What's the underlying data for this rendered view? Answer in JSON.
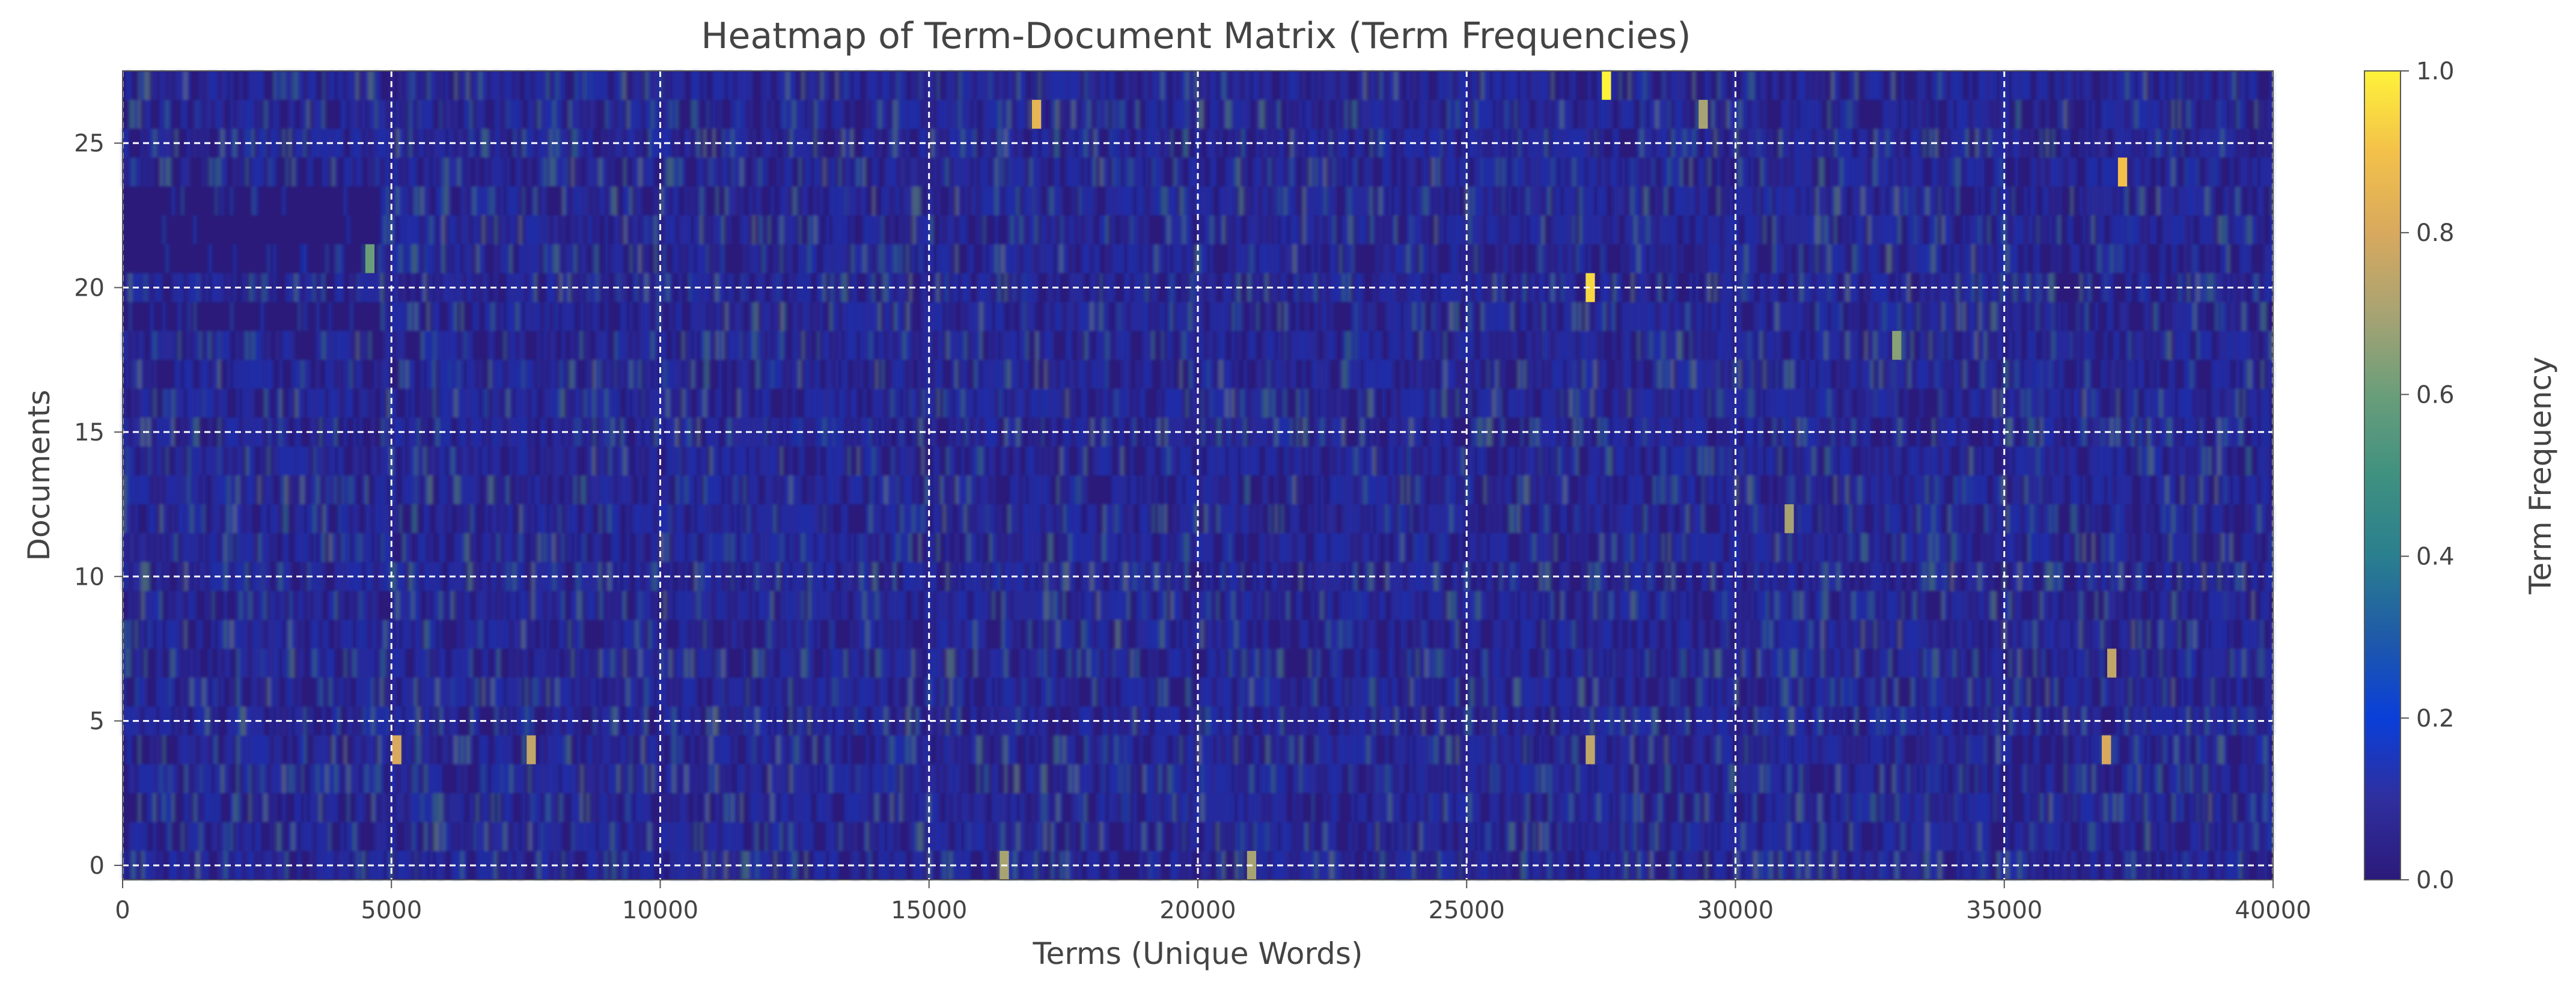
{
  "chart_data": {
    "type": "heatmap",
    "title": "Heatmap of Term-Document Matrix (Term Frequencies)",
    "xlabel": "Terms (Unique Words)",
    "ylabel": "Documents",
    "xlim": [
      0,
      40000
    ],
    "ylim": [
      -0.5,
      27.5
    ],
    "n_documents": 28,
    "n_terms": 40000,
    "x_ticks": [
      0,
      5000,
      10000,
      15000,
      20000,
      25000,
      30000,
      35000,
      40000
    ],
    "x_tick_labels": [
      "0",
      "5000",
      "10000",
      "15000",
      "20000",
      "25000",
      "30000",
      "35000",
      "40000"
    ],
    "y_ticks": [
      0,
      5,
      10,
      15,
      20,
      25
    ],
    "y_tick_labels": [
      "0",
      "5",
      "10",
      "15",
      "20",
      "25"
    ],
    "grid": true,
    "grid_style": "dashed",
    "grid_color": "#ffffff",
    "colormap": {
      "name": "plasma-like (navy → blue → teal → green → gold → yellow)",
      "stops": [
        {
          "value": 0.0,
          "color": "#2b1a7a"
        },
        {
          "value": 0.1,
          "color": "#2f2f9e"
        },
        {
          "value": 0.2,
          "color": "#0a3fd9"
        },
        {
          "value": 0.3,
          "color": "#1f5aa8"
        },
        {
          "value": 0.4,
          "color": "#2a7f8f"
        },
        {
          "value": 0.5,
          "color": "#3f9180"
        },
        {
          "value": 0.6,
          "color": "#6a9e7a"
        },
        {
          "value": 0.7,
          "color": "#a8a373"
        },
        {
          "value": 0.8,
          "color": "#d8a95e"
        },
        {
          "value": 0.9,
          "color": "#f3c14a"
        },
        {
          "value": 1.0,
          "color": "#fff23a"
        }
      ]
    },
    "colorbar": {
      "label": "Term Frequency",
      "ticks": [
        0.0,
        0.2,
        0.4,
        0.6,
        0.8,
        1.0
      ],
      "tick_labels": [
        "0.0",
        "0.2",
        "0.4",
        "0.6",
        "0.8",
        "1.0"
      ],
      "range": [
        0.0,
        1.0
      ]
    },
    "value_summary": {
      "background_level": 0.08,
      "typical_streak_level": 0.45,
      "max_level": 1.0
    },
    "hotspots": [
      {
        "term": 27600,
        "doc": 27,
        "value": 1.0
      },
      {
        "term": 27300,
        "doc": 20,
        "value": 0.95
      },
      {
        "term": 37200,
        "doc": 24,
        "value": 0.9
      },
      {
        "term": 17000,
        "doc": 26,
        "value": 0.85
      },
      {
        "term": 5100,
        "doc": 4,
        "value": 0.8
      },
      {
        "term": 36900,
        "doc": 4,
        "value": 0.8
      },
      {
        "term": 7600,
        "doc": 4,
        "value": 0.75
      },
      {
        "term": 27300,
        "doc": 4,
        "value": 0.75
      },
      {
        "term": 21000,
        "doc": 0,
        "value": 0.7
      },
      {
        "term": 16400,
        "doc": 0,
        "value": 0.7
      },
      {
        "term": 37000,
        "doc": 7,
        "value": 0.75
      },
      {
        "term": 31000,
        "doc": 12,
        "value": 0.7
      },
      {
        "term": 29400,
        "doc": 26,
        "value": 0.7
      },
      {
        "term": 4600,
        "doc": 21,
        "value": 0.6
      },
      {
        "term": 33000,
        "doc": 18,
        "value": 0.65
      }
    ]
  }
}
